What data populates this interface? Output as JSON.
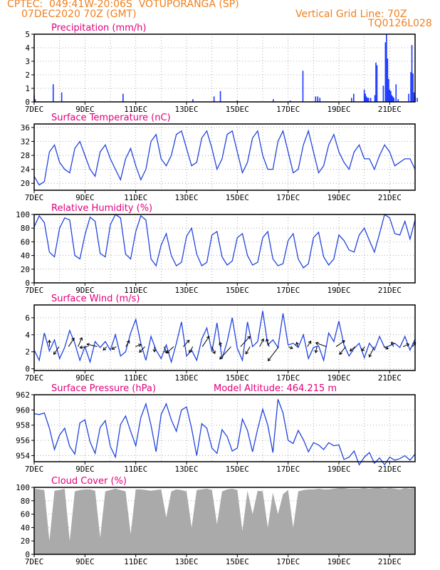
{
  "header": {
    "line1": "CPTEC:  049:41W-20:06S  VOTUPORANGA (SP)",
    "line2": "07DEC2020 70Z (GMT)",
    "right1": "Vertical Grid Line: 70Z",
    "right2": "TQ0126L028"
  },
  "x_ticks": [
    "7DEC",
    "9DEC",
    "11DEC",
    "13DEC",
    "15DEC",
    "17DEC",
    "19DEC",
    "21DEC"
  ],
  "colors": {
    "line": "#2244dd",
    "bar": "#1f3bff",
    "cloud": "#aaaaaa",
    "title": "#e0007a",
    "header": "#f08020"
  },
  "chart_data": [
    {
      "type": "bar",
      "title": "Precipitation (mm/h)",
      "ylim": [
        0,
        5
      ],
      "yticks": [
        0,
        1,
        2,
        3,
        4,
        5
      ],
      "x": [
        "07DEC 00Z",
        "07DEC 01Z",
        "07DEC 18Z",
        "08DEC 02Z",
        "10DEC 12Z",
        "13DEC 06Z",
        "14DEC 02Z",
        "14DEC 08Z",
        "15DEC 00Z",
        "16DEC 10Z",
        "17DEC 02Z",
        "17DEC 14Z",
        "18DEC 02Z",
        "18DEC 04Z",
        "18DEC 06Z",
        "19DEC 12Z",
        "19DEC 14Z",
        "20DEC 00Z",
        "20DEC 01Z",
        "20DEC 02Z",
        "20DEC 03Z",
        "20DEC 04Z",
        "20DEC 06Z",
        "20DEC 10Z",
        "20DEC 11Z",
        "20DEC 12Z",
        "20DEC 18Z",
        "20DEC 20Z",
        "20DEC 21Z",
        "20DEC 22Z",
        "20DEC 23Z",
        "21DEC 00Z",
        "21DEC 01Z",
        "21DEC 02Z",
        "21DEC 03Z",
        "21DEC 04Z",
        "21DEC 06Z",
        "21DEC 08Z",
        "21DEC 18Z",
        "21DEC 20Z",
        "21DEC 21Z",
        "21DEC 22Z",
        "21DEC 23Z",
        "22DEC 00Z",
        "22DEC 02Z"
      ],
      "values": [
        0.5,
        0.2,
        1.3,
        0.7,
        0.6,
        0.2,
        0.4,
        0.8,
        0.1,
        0.2,
        0.1,
        2.3,
        0.4,
        0.4,
        0.3,
        0.3,
        0.6,
        0.9,
        0.6,
        0.4,
        0.3,
        0.3,
        0.3,
        0.5,
        2.9,
        2.7,
        1.2,
        4.4,
        5.0,
        3.2,
        1.7,
        0.9,
        0.8,
        0.5,
        0.4,
        0.3,
        1.3,
        0.2,
        0.6,
        2.2,
        4.2,
        2.1,
        0.7,
        0.4,
        0.3
      ]
    },
    {
      "type": "line",
      "title": "Surface Temperature (nC)",
      "ylim": [
        18,
        37
      ],
      "yticks": [
        20,
        24,
        28,
        32,
        36
      ],
      "x_days": [
        7.0,
        7.2,
        7.4,
        7.6,
        7.8,
        8.0,
        8.2,
        8.4,
        8.6,
        8.8,
        9.0,
        9.2,
        9.4,
        9.6,
        9.8,
        10.0,
        10.2,
        10.4,
        10.6,
        10.8,
        11.0,
        11.2,
        11.4,
        11.6,
        11.8,
        12.0,
        12.2,
        12.4,
        12.6,
        12.8,
        13.0,
        13.2,
        13.4,
        13.6,
        13.8,
        14.0,
        14.2,
        14.4,
        14.6,
        14.8,
        15.0,
        15.2,
        15.4,
        15.6,
        15.8,
        16.0,
        16.2,
        16.4,
        16.6,
        16.8,
        17.0,
        17.2,
        17.4,
        17.6,
        17.8,
        18.0,
        18.2,
        18.4,
        18.6,
        18.8,
        19.0,
        19.2,
        19.4,
        19.6,
        19.8,
        20.0,
        20.2,
        20.4,
        20.6,
        20.8,
        21.0,
        21.2,
        21.4,
        21.6,
        21.8,
        22.0
      ],
      "values": [
        22,
        19.5,
        20.5,
        29,
        31,
        26,
        24,
        23,
        30,
        32,
        28,
        24,
        22,
        29,
        31,
        27,
        24,
        21,
        27,
        30,
        25,
        21,
        24,
        32,
        34,
        27,
        25,
        28,
        34,
        35,
        30,
        25,
        26,
        33,
        35,
        30,
        24,
        27,
        34,
        35,
        29,
        23,
        26,
        33,
        35,
        28,
        24,
        24,
        32,
        35,
        29,
        23,
        24,
        31,
        35,
        29,
        23,
        25,
        31,
        34,
        29,
        26,
        24,
        29,
        31,
        27,
        27,
        24,
        28,
        31,
        29,
        25,
        26,
        27,
        27,
        24
      ]
    },
    {
      "type": "line",
      "title": "Relative Humidity (%)",
      "ylim": [
        0,
        100
      ],
      "yticks": [
        0,
        20,
        40,
        60,
        80,
        100
      ],
      "x_days": [
        7.0,
        7.2,
        7.4,
        7.6,
        7.8,
        8.0,
        8.2,
        8.4,
        8.6,
        8.8,
        9.0,
        9.2,
        9.4,
        9.6,
        9.8,
        10.0,
        10.2,
        10.4,
        10.6,
        10.8,
        11.0,
        11.2,
        11.4,
        11.6,
        11.8,
        12.0,
        12.2,
        12.4,
        12.6,
        12.8,
        13.0,
        13.2,
        13.4,
        13.6,
        13.8,
        14.0,
        14.2,
        14.4,
        14.6,
        14.8,
        15.0,
        15.2,
        15.4,
        15.6,
        15.8,
        16.0,
        16.2,
        16.4,
        16.6,
        16.8,
        17.0,
        17.2,
        17.4,
        17.6,
        17.8,
        18.0,
        18.2,
        18.4,
        18.6,
        18.8,
        19.0,
        19.2,
        19.4,
        19.6,
        19.8,
        20.0,
        20.2,
        20.4,
        20.6,
        20.8,
        21.0,
        21.2,
        21.4,
        21.6,
        21.8,
        22.0
      ],
      "values": [
        82,
        98,
        88,
        45,
        38,
        80,
        95,
        92,
        40,
        35,
        70,
        96,
        90,
        43,
        38,
        85,
        100,
        95,
        42,
        35,
        75,
        98,
        92,
        35,
        25,
        55,
        72,
        40,
        25,
        30,
        68,
        80,
        42,
        25,
        30,
        70,
        75,
        38,
        26,
        32,
        66,
        72,
        40,
        26,
        30,
        66,
        75,
        35,
        25,
        28,
        62,
        72,
        35,
        22,
        28,
        66,
        74,
        38,
        26,
        35,
        70,
        62,
        48,
        45,
        70,
        80,
        62,
        45,
        72,
        100,
        95,
        72,
        70,
        90,
        64,
        92
      ]
    },
    {
      "type": "line",
      "title": "Surface Wind (m/s)",
      "ylim": [
        -0.2,
        7.5
      ],
      "yticks": [
        0,
        2,
        4,
        6
      ],
      "x_days": [
        7.0,
        7.2,
        7.4,
        7.6,
        7.8,
        8.0,
        8.2,
        8.4,
        8.6,
        8.8,
        9.0,
        9.2,
        9.4,
        9.6,
        9.8,
        10.0,
        10.2,
        10.4,
        10.6,
        10.8,
        11.0,
        11.2,
        11.4,
        11.6,
        11.8,
        12.0,
        12.2,
        12.4,
        12.6,
        12.8,
        13.0,
        13.2,
        13.4,
        13.6,
        13.8,
        14.0,
        14.2,
        14.4,
        14.6,
        14.8,
        15.0,
        15.2,
        15.4,
        15.6,
        15.8,
        16.0,
        16.2,
        16.4,
        16.6,
        16.8,
        17.0,
        17.2,
        17.4,
        17.6,
        17.8,
        18.0,
        18.2,
        18.4,
        18.6,
        18.8,
        19.0,
        19.2,
        19.4,
        19.6,
        19.8,
        20.0,
        20.2,
        20.4,
        20.6,
        20.8,
        21.0,
        21.2,
        21.4,
        21.6,
        21.8,
        22.0
      ],
      "values": [
        2.2,
        1.0,
        4.2,
        2.1,
        3.4,
        1.2,
        2.5,
        4.5,
        3.0,
        1.0,
        2.6,
        0.8,
        3.2,
        2.5,
        3.2,
        2.2,
        4.0,
        1.5,
        2.0,
        4.2,
        5.8,
        3.0,
        1.0,
        3.8,
        2.2,
        1.2,
        2.8,
        0.8,
        3.0,
        5.5,
        1.5,
        2.2,
        1.0,
        3.5,
        4.8,
        2.0,
        5.4,
        1.2,
        3.2,
        6.0,
        2.4,
        1.0,
        5.5,
        2.6,
        3.2,
        6.8,
        2.8,
        3.4,
        2.5,
        6.5,
        2.8,
        3.0,
        2.5,
        4.0,
        1.2,
        2.5,
        2.7,
        1.0,
        4.2,
        3.2,
        5.6,
        2.8,
        1.5,
        2.4,
        3.0,
        1.3,
        3.0,
        2.2,
        3.8,
        2.5,
        2.7,
        3.0,
        2.5,
        3.8,
        2.2,
        3.5
      ],
      "arrows_uv": [
        [
          0.0,
          1.5
        ],
        [
          -1.2,
          -1.8
        ],
        [
          1.3,
          2.0
        ],
        [
          0.9,
          2.1
        ],
        [
          -1.8,
          -0.2
        ],
        [
          -2.4,
          0.6
        ],
        [
          -0.8,
          -0.8
        ],
        [
          -1.0,
          -0.6
        ],
        [
          0.8,
          1.4
        ],
        [
          1.3,
          0.5
        ],
        [
          -1.3,
          -1.3
        ],
        [
          0.0,
          -1.2
        ],
        [
          0.6,
          -1.5
        ],
        [
          -1.6,
          -1.5
        ],
        [
          1.4,
          1.5
        ],
        [
          -0.8,
          -1.4
        ],
        [
          1.6,
          2.4
        ],
        [
          0.7,
          -1.6
        ],
        [
          -0.4,
          1.0
        ],
        [
          -2.6,
          -2.9
        ],
        [
          2.2,
          2.4
        ],
        [
          -1.0,
          -1.7
        ],
        [
          0.9,
          1.8
        ],
        [
          -0.6,
          1.8
        ],
        [
          -2.5,
          -3.3
        ],
        [
          1.0,
          -0.4
        ],
        [
          -0.3,
          1.0
        ],
        [
          0.8,
          1.3
        ],
        [
          -0.3,
          -1.4
        ],
        [
          -2.5,
          0.9
        ],
        [
          2.0,
          1.4
        ],
        [
          -1.4,
          -1.8
        ],
        [
          -1.2,
          -1.0
        ],
        [
          -0.7,
          -1.0
        ],
        [
          -1.2,
          -2.4
        ],
        [
          1.0,
          -0.5
        ],
        [
          -0.4,
          1.1
        ],
        [
          1.4,
          0.6
        ],
        [
          0.7,
          1.0
        ]
      ]
    },
    {
      "type": "line",
      "title": "Surface Pressure (hPa)",
      "subtitle": "Model Altitude: 464.215 m",
      "ylim": [
        953.2,
        962
      ],
      "yticks": [
        954,
        956,
        958,
        960,
        962
      ],
      "x_days": [
        7.0,
        7.2,
        7.4,
        7.6,
        7.8,
        8.0,
        8.2,
        8.4,
        8.6,
        8.8,
        9.0,
        9.2,
        9.4,
        9.6,
        9.8,
        10.0,
        10.2,
        10.4,
        10.6,
        10.8,
        11.0,
        11.2,
        11.4,
        11.6,
        11.8,
        12.0,
        12.2,
        12.4,
        12.6,
        12.8,
        13.0,
        13.2,
        13.4,
        13.6,
        13.8,
        14.0,
        14.2,
        14.4,
        14.6,
        14.8,
        15.0,
        15.2,
        15.4,
        15.6,
        15.8,
        16.0,
        16.2,
        16.4,
        16.6,
        16.8,
        17.0,
        17.2,
        17.4,
        17.6,
        17.8,
        18.0,
        18.2,
        18.4,
        18.6,
        18.8,
        19.0,
        19.2,
        19.4,
        19.6,
        19.8,
        20.0,
        20.2,
        20.4,
        20.6,
        20.8,
        21.0,
        21.2,
        21.4,
        21.6,
        21.8,
        22.0
      ],
      "values": [
        959.5,
        959.4,
        959.6,
        957.6,
        954.8,
        956.7,
        957.6,
        955.2,
        954.2,
        958.3,
        958.7,
        955.8,
        954.3,
        957.7,
        958.6,
        955.2,
        953.8,
        958.1,
        959.2,
        957.2,
        955.3,
        959.0,
        960.8,
        958.0,
        954.5,
        959.4,
        960.8,
        958.7,
        957.2,
        960.0,
        960.4,
        957.6,
        954.0,
        958.2,
        957.6,
        955.0,
        954.3,
        957.4,
        956.5,
        954.6,
        955.0,
        958.8,
        957.3,
        954.5,
        957.5,
        960.1,
        958.0,
        954.4,
        961.4,
        959.6,
        956.0,
        955.6,
        957.3,
        956.1,
        954.5,
        955.7,
        955.4,
        954.8,
        955.7,
        955.3,
        955.4,
        953.5,
        953.8,
        954.6,
        952.8,
        953.8,
        954.4,
        953.0,
        953.7,
        952.8,
        953.8,
        953.4,
        953.6,
        954.0,
        953.4,
        954.2
      ]
    },
    {
      "type": "area",
      "title": "Cloud Cover (%)",
      "ylim": [
        0,
        100
      ],
      "yticks": [
        0,
        20,
        40,
        60,
        80,
        100
      ],
      "x_days": [
        7.0,
        7.2,
        7.4,
        7.6,
        7.8,
        8.0,
        8.2,
        8.4,
        8.6,
        8.8,
        9.0,
        9.2,
        9.4,
        9.6,
        9.8,
        10.0,
        10.2,
        10.4,
        10.6,
        10.8,
        11.0,
        11.2,
        11.4,
        11.6,
        11.8,
        12.0,
        12.2,
        12.4,
        12.6,
        12.8,
        13.0,
        13.2,
        13.4,
        13.6,
        13.8,
        14.0,
        14.2,
        14.4,
        14.6,
        14.8,
        15.0,
        15.2,
        15.4,
        15.6,
        15.8,
        16.0,
        16.2,
        16.4,
        16.6,
        16.8,
        17.0,
        17.2,
        17.4,
        17.6,
        17.8,
        18.0,
        18.2,
        18.4,
        18.6,
        18.8,
        19.0,
        19.2,
        19.4,
        19.6,
        19.8,
        20.0,
        20.2,
        20.4,
        20.6,
        20.8,
        21.0,
        21.2,
        21.4,
        21.6,
        21.8,
        22.0
      ],
      "values": [
        98,
        97,
        96,
        20,
        95,
        96,
        98,
        20,
        94,
        96,
        97,
        97,
        95,
        25,
        94,
        96,
        98,
        96,
        94,
        30,
        97,
        97,
        96,
        95,
        96,
        97,
        55,
        94,
        97,
        96,
        94,
        40,
        96,
        97,
        98,
        96,
        45,
        94,
        97,
        98,
        96,
        35,
        95,
        60,
        95,
        94,
        40,
        92,
        60,
        90,
        96,
        40,
        94,
        96,
        97,
        97,
        98,
        97,
        97,
        98,
        99,
        99,
        98,
        98,
        98,
        99,
        98,
        99,
        99,
        98,
        99,
        98,
        97,
        99,
        98,
        99
      ]
    }
  ]
}
